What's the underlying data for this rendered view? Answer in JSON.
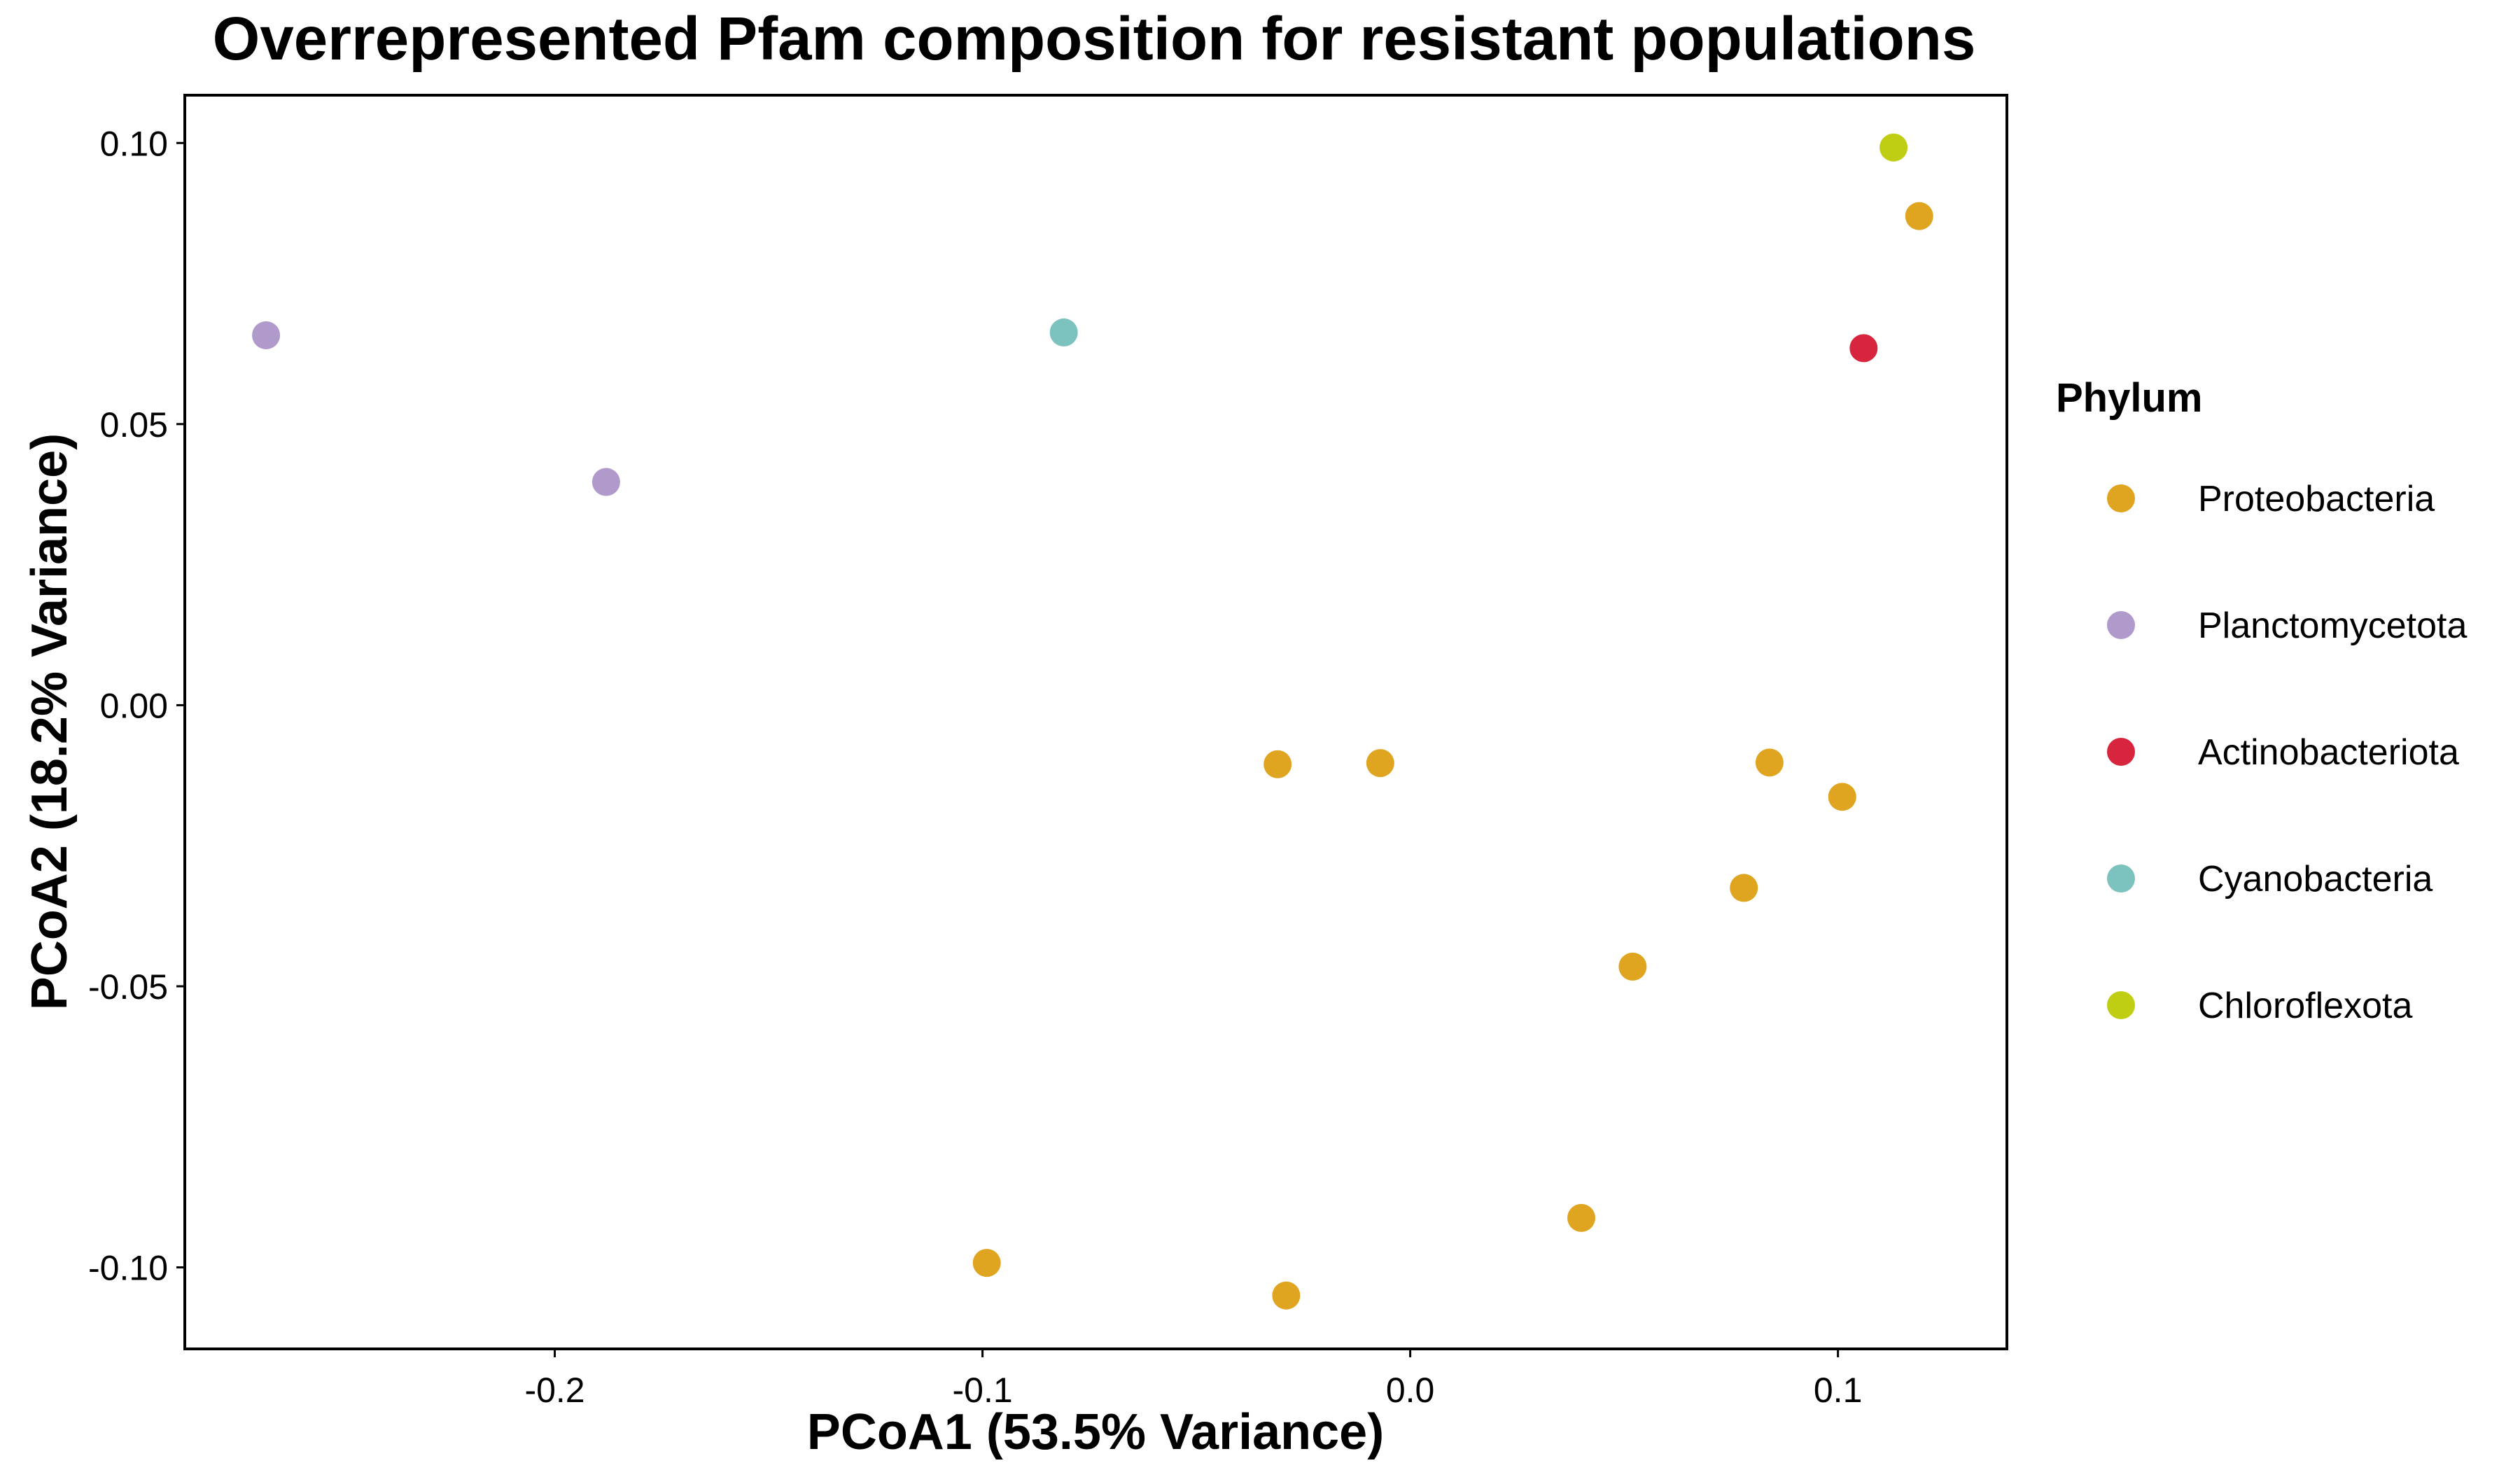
{
  "chart_data": {
    "type": "scatter",
    "title": "Overrepresented Pfam composition for resistant populations",
    "xlabel": "PCoA1 (53.5% Variance)",
    "ylabel": "PCoA2 (18.2% Variance)",
    "xlim": [
      -0.2865,
      0.1395
    ],
    "ylim": [
      -0.1145,
      0.1085
    ],
    "x_ticks": [
      -0.2,
      -0.1,
      0.0,
      0.1
    ],
    "x_tick_labels": [
      "-0.2",
      "-0.1",
      "0.0",
      "0.1"
    ],
    "y_ticks": [
      0.1,
      0.05,
      0.0,
      -0.05,
      -0.1
    ],
    "y_tick_labels": [
      "0.10",
      "0.05",
      "0.00",
      "-0.05",
      "-0.10"
    ],
    "grid": false,
    "legend": {
      "title": "Phylum",
      "position": "right"
    },
    "series": [
      {
        "name": "Proteobacteria",
        "color": "#E0A520",
        "points": [
          {
            "x": 0.119,
            "y": 0.087
          },
          {
            "x": -0.031,
            "y": -0.0105
          },
          {
            "x": -0.007,
            "y": -0.0103
          },
          {
            "x": 0.084,
            "y": -0.0102
          },
          {
            "x": 0.101,
            "y": -0.0163
          },
          {
            "x": 0.078,
            "y": -0.0325
          },
          {
            "x": 0.052,
            "y": -0.0465
          },
          {
            "x": 0.04,
            "y": -0.0912
          },
          {
            "x": -0.099,
            "y": -0.0992
          },
          {
            "x": -0.029,
            "y": -0.105
          }
        ]
      },
      {
        "name": "Planctomycetota",
        "color": "#B09ACB",
        "points": [
          {
            "x": -0.2675,
            "y": 0.0658
          },
          {
            "x": -0.188,
            "y": 0.0397
          }
        ]
      },
      {
        "name": "Actinobacteriota",
        "color": "#D8253E",
        "points": [
          {
            "x": 0.106,
            "y": 0.0635
          }
        ]
      },
      {
        "name": "Cyanobacteria",
        "color": "#7CC2BE",
        "points": [
          {
            "x": -0.081,
            "y": 0.0663
          }
        ]
      },
      {
        "name": "Chloroflexota",
        "color": "#BFCE12",
        "points": [
          {
            "x": 0.113,
            "y": 0.0992
          }
        ]
      }
    ]
  }
}
